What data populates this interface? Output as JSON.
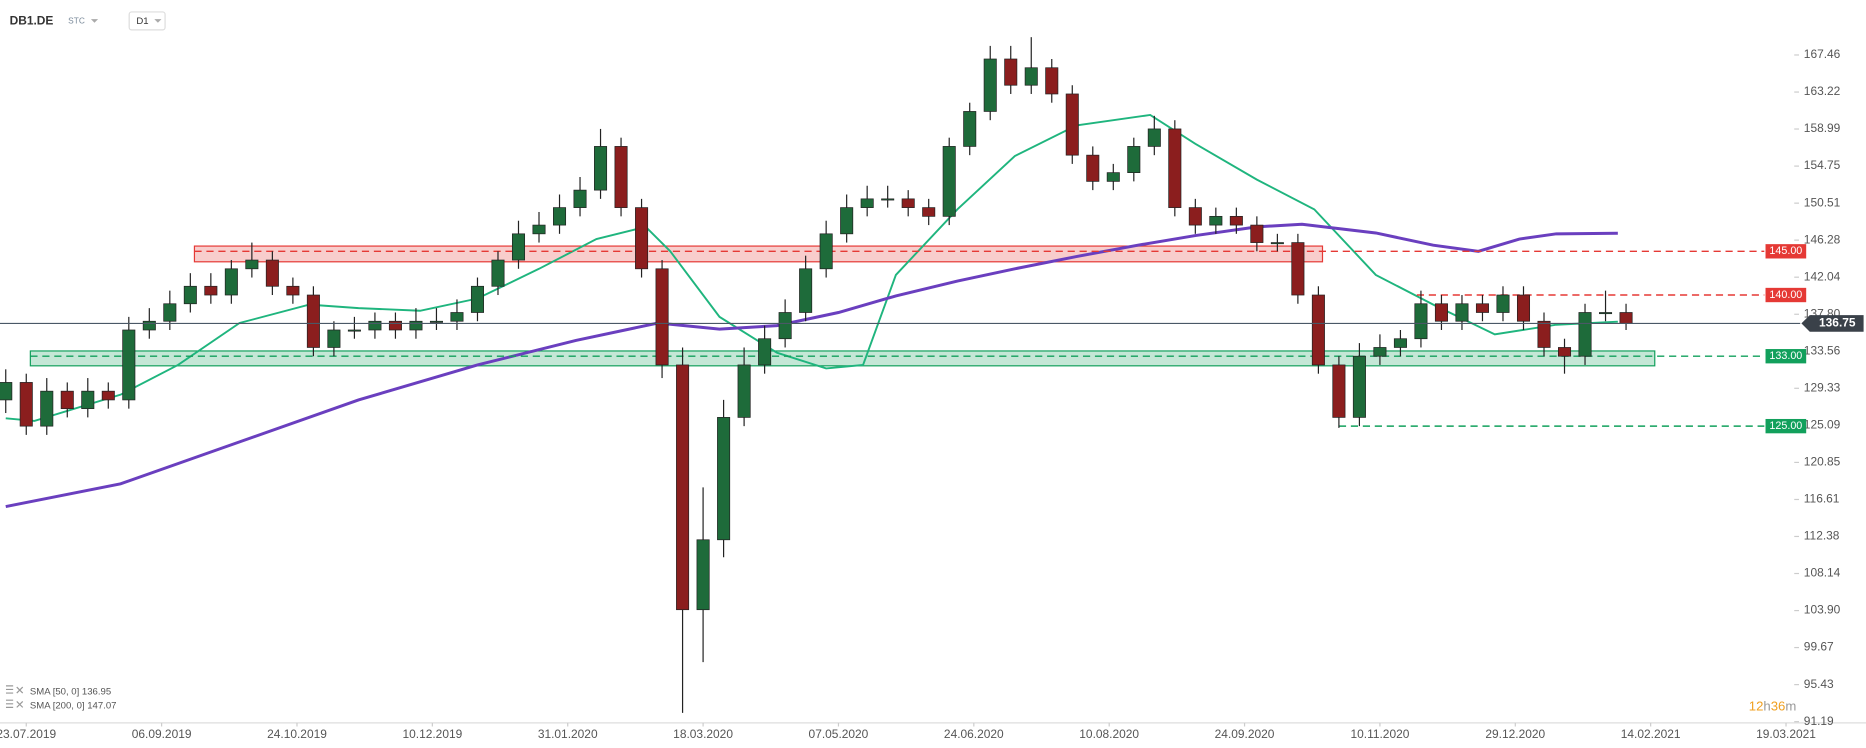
{
  "header": {
    "symbol": "DB1.DE",
    "market": "STC",
    "interval": "D1"
  },
  "legend": [
    "SMA [50, 0] 136.95",
    "SMA [200, 0] 147.07"
  ],
  "countdown": [
    "12",
    "h",
    "36",
    "m"
  ],
  "chart_data": {
    "type": "candlestick",
    "x": [
      -5,
      0,
      5,
      10,
      15,
      20,
      25,
      30,
      35,
      40,
      45,
      50,
      55,
      60,
      65,
      70,
      75,
      80,
      85,
      90,
      95,
      100,
      105,
      110,
      115,
      120,
      125,
      130,
      135,
      140,
      145,
      150,
      155,
      160,
      165,
      170,
      175,
      180,
      185,
      190,
      195,
      200,
      205,
      210,
      215,
      220,
      225,
      230,
      235,
      240,
      245,
      250,
      255,
      260,
      265,
      270,
      275,
      280,
      285,
      290,
      295,
      300,
      305,
      310,
      315,
      320,
      325,
      330,
      335,
      340,
      345,
      350,
      355,
      360,
      365,
      370,
      375,
      380,
      385,
      390
    ],
    "open": [
      128,
      130,
      125,
      129,
      127,
      129,
      128,
      136,
      137,
      139,
      141,
      140,
      143,
      144,
      141,
      140,
      134,
      136,
      136,
      137,
      136,
      137,
      137,
      138,
      141,
      144,
      147,
      148,
      150,
      152,
      157,
      150,
      143,
      132,
      104,
      112,
      126,
      132,
      135,
      138,
      143,
      147,
      150,
      151,
      151,
      150,
      149,
      157,
      161,
      167,
      164,
      166,
      163,
      156,
      153,
      154,
      157,
      159,
      150,
      148,
      149,
      148,
      146,
      146,
      140,
      132,
      126,
      133,
      134,
      135,
      139,
      137,
      139,
      138,
      140,
      137,
      134,
      133,
      138,
      138
    ],
    "high": [
      131.5,
      131,
      130.5,
      130,
      130.5,
      130,
      137.5,
      138.5,
      140.5,
      142.5,
      142.5,
      144,
      146,
      145,
      142,
      141,
      137,
      137.5,
      138,
      138,
      138.5,
      138.5,
      139.5,
      142,
      145,
      148.5,
      149.5,
      151.5,
      153.5,
      159,
      158,
      151,
      144,
      134,
      118,
      128,
      134,
      136.5,
      139.5,
      144.5,
      148.5,
      151.5,
      152.5,
      152.5,
      152,
      151,
      158,
      162,
      168.5,
      168.5,
      169.5,
      167,
      164,
      157,
      155,
      158,
      160.5,
      160,
      151,
      150,
      150,
      149,
      147,
      147,
      141,
      133,
      134.5,
      135.5,
      136,
      140.5,
      140,
      140,
      140,
      141,
      141,
      138,
      135,
      139,
      140.5,
      139
    ],
    "low": [
      126.5,
      124,
      124,
      126,
      126,
      127,
      127,
      135,
      136,
      138,
      139,
      139,
      142,
      140,
      139,
      133,
      133,
      135,
      135,
      135,
      135,
      136,
      136,
      137,
      140,
      143,
      146,
      147,
      149,
      151,
      149,
      142,
      130.5,
      92.2,
      98,
      110,
      125,
      131,
      134,
      137,
      142,
      146,
      149,
      150,
      149,
      148,
      148,
      156,
      160,
      163,
      163,
      162,
      155,
      152,
      152,
      153,
      156,
      149,
      147,
      147,
      147,
      145,
      145,
      139,
      131,
      124.8,
      125,
      132,
      133,
      134,
      136,
      136,
      137,
      137,
      136,
      133,
      131,
      132,
      137,
      136
    ],
    "close": [
      130,
      125,
      129,
      127,
      129,
      128,
      136,
      137,
      139,
      141,
      140,
      143,
      144,
      141,
      140,
      134,
      136,
      136,
      137,
      136,
      137,
      137,
      138,
      141,
      144,
      147,
      148,
      150,
      152,
      157,
      150,
      143,
      132,
      104,
      112,
      126,
      132,
      135,
      138,
      143,
      147,
      150,
      151,
      151,
      150,
      149,
      157,
      161,
      167,
      164,
      166,
      163,
      156,
      153,
      154,
      157,
      159,
      150,
      148,
      149,
      148,
      146,
      146,
      140,
      132,
      126,
      133,
      134,
      135,
      139,
      137,
      139,
      138,
      140,
      137,
      134,
      133,
      138,
      138,
      136.75
    ],
    "up_color": "#1e6b3a",
    "down_color": "#8b1e1e",
    "overlays": [
      {
        "name": "SMA [50, 0]",
        "color": "#1fb57e",
        "x": [
          -5,
          2,
          23,
          37,
          52,
          69,
          81,
          96,
          110,
          125,
          139,
          151,
          157,
          169,
          183,
          195,
          204,
          212,
          227,
          241,
          256,
          274,
          285,
          300,
          314,
          329,
          343,
          358,
          373,
          388
        ],
        "values": [
          125.9,
          125.6,
          128.6,
          132,
          136.8,
          138.9,
          138.5,
          138.2,
          139.6,
          143,
          146.4,
          147.8,
          145,
          137.5,
          133.4,
          131.6,
          132,
          142.3,
          149.8,
          155.9,
          159.4,
          160.6,
          157.3,
          153.2,
          149.8,
          142.3,
          138.9,
          135.5,
          136.6,
          136.95
        ]
      },
      {
        "name": "SMA [200, 0]",
        "color": "#6a3fbf",
        "x": [
          -5,
          23,
          52,
          81,
          110,
          134,
          154,
          169,
          183,
          198,
          212,
          227,
          241,
          256,
          271,
          285,
          300,
          311,
          329,
          343,
          354,
          364,
          373,
          388
        ],
        "values": [
          115.8,
          118.4,
          123.2,
          128,
          132,
          134.8,
          136.8,
          136.1,
          136.5,
          138,
          139.9,
          141.6,
          143,
          144.4,
          145.7,
          146.8,
          147.8,
          148.1,
          147.1,
          145.7,
          145,
          146.4,
          147,
          147.07
        ]
      }
    ],
    "zones": [
      {
        "low": 143.8,
        "high": 145.6,
        "from": 41,
        "to": 316,
        "color": "#e53935"
      },
      {
        "low": 131.9,
        "high": 133.6,
        "from": 1,
        "to": 397,
        "color": "#12a05c"
      }
    ],
    "levels": [
      {
        "value": 145,
        "label": "145.00",
        "from": 41,
        "color": "#e53935"
      },
      {
        "value": 140,
        "label": "140.00",
        "from": 339,
        "color": "#e53935"
      },
      {
        "value": 133,
        "label": "133.00",
        "from": 1,
        "color": "#12a05c"
      },
      {
        "value": 125,
        "label": "125.00",
        "from": 320,
        "color": "#12a05c"
      }
    ],
    "last_price": 136.75,
    "xlim": [
      -6.4,
      431
    ],
    "xticks": [
      {
        "value": 0,
        "label": "23.07.2019"
      },
      {
        "value": 33,
        "label": "06.09.2019"
      },
      {
        "value": 66,
        "label": "24.10.2019"
      },
      {
        "value": 99,
        "label": "10.12.2019"
      },
      {
        "value": 132,
        "label": "31.01.2020"
      },
      {
        "value": 165,
        "label": "18.03.2020"
      },
      {
        "value": 198,
        "label": "07.05.2020"
      },
      {
        "value": 231,
        "label": "24.06.2020"
      },
      {
        "value": 264,
        "label": "10.08.2020"
      },
      {
        "value": 297,
        "label": "24.09.2020"
      },
      {
        "value": 330,
        "label": "10.11.2020"
      },
      {
        "value": 363,
        "label": "29.12.2020"
      },
      {
        "value": 396,
        "label": "14.02.2021"
      },
      {
        "value": 429,
        "label": "19.03.2021"
      }
    ],
    "ylim": [
      91.05,
      173.75
    ],
    "yticks": [
      167.46,
      163.22,
      158.99,
      154.75,
      150.51,
      146.28,
      142.04,
      {
        "value": 137.8,
        "label": "137.80"
      },
      133.56,
      129.33,
      125.09,
      120.85,
      116.61,
      112.38,
      108.14,
      {
        "value": 103.9,
        "label": "103.90"
      },
      99.67,
      95.43,
      91.19
    ]
  }
}
